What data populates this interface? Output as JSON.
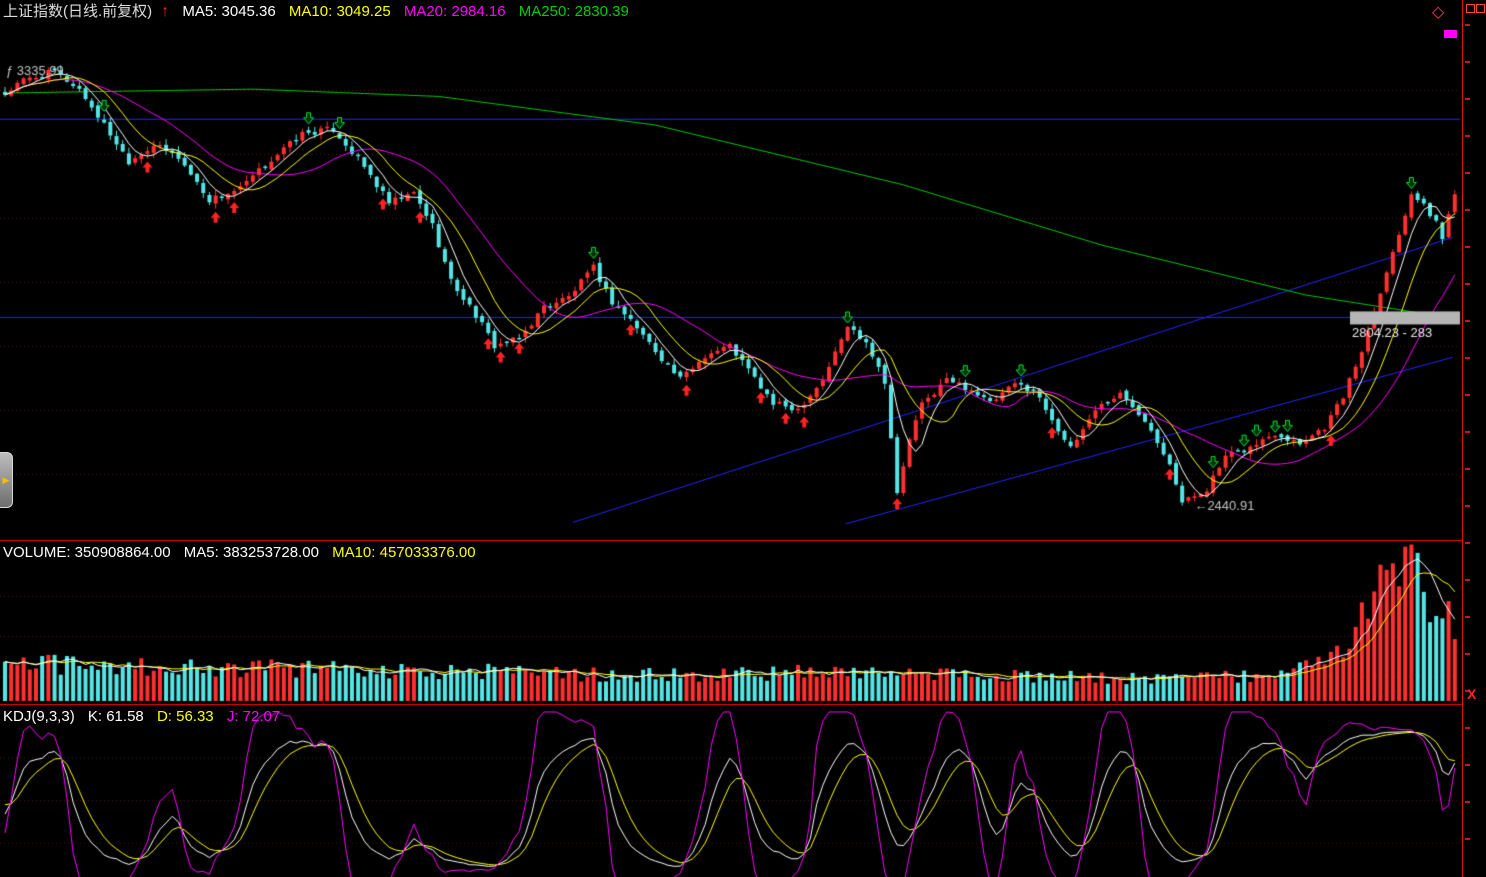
{
  "app": {
    "name": "stock-charting-terminal"
  },
  "icons": {
    "up_arrow": "↑",
    "diamond": "◇",
    "close": "X",
    "tab_arrow": "▶"
  },
  "colors": {
    "background": "#000000",
    "up": "#ff3030",
    "down": "#54e6e6",
    "ma5": "#ffffff",
    "ma10": "#ffff00",
    "ma20": "#ff00ff",
    "ma250": "#00cc00",
    "kdj_k": "#ffffff",
    "kdj_d": "#ffff00",
    "kdj_j": "#ff00ff",
    "grid": "#5a1010",
    "bluelines": "#2424ff",
    "panel_border": "#c80000",
    "buy_marker": "#ff2222",
    "sell_marker": "#00dd33",
    "label_gray": "#c0c0c0",
    "marker_box": "#b5b5b5"
  },
  "main_panel": {
    "title": "上证指数(日线.前复权)",
    "ma_labels": [
      {
        "label": "MA5: 3045.36",
        "color": "#ffffff"
      },
      {
        "label": "MA10: 3049.25",
        "color": "#ffff00"
      },
      {
        "label": "MA20: 2984.16",
        "color": "#ff00ff"
      },
      {
        "label": "MA250: 2830.39",
        "color": "#00cc00"
      }
    ],
    "annotations": {
      "peak": {
        "text": "ƒ 3335.99",
        "index": 0,
        "price": 3336
      },
      "trough": {
        "text": "←2440.91",
        "index": 191,
        "price": 2441
      },
      "right_box": {
        "text": "2804.23 - 283",
        "price": 2830
      }
    }
  },
  "volume_panel": {
    "labels": [
      {
        "label": "VOLUME: 350908864.00",
        "color": "#ffffff"
      },
      {
        "label": "MA5: 383253728.00",
        "color": "#ffffff"
      },
      {
        "label": "MA10: 457033376.00",
        "color": "#ffff00"
      }
    ]
  },
  "kdj_panel": {
    "labels": [
      {
        "label": "KDJ(9,3,3)",
        "color": "#ffffff"
      },
      {
        "label": "K: 61.58",
        "color": "#ffffff"
      },
      {
        "label": "D: 56.33",
        "color": "#ffff00"
      },
      {
        "label": "J: 72.07",
        "color": "#ff00ff"
      }
    ]
  },
  "chart_data": [
    {
      "type": "candlestick",
      "name": "price",
      "title": "上证指数(日线.前复权)",
      "bars": 235,
      "y_range": [
        2380,
        3430
      ],
      "ma_values": {
        "ma5": 3045.36,
        "ma10": 3049.25,
        "ma20": 2984.16,
        "ma250": 2830.39
      },
      "labeled_points": {
        "peak": 3335.99,
        "trough": 2440.91,
        "right_marker": "2804.23 - 283"
      },
      "close_anchors": [
        [
          0,
          3290
        ],
        [
          3,
          3318
        ],
        [
          8,
          3336
        ],
        [
          12,
          3300
        ],
        [
          15,
          3245
        ],
        [
          20,
          3152
        ],
        [
          24,
          3185
        ],
        [
          28,
          3160
        ],
        [
          33,
          3072
        ],
        [
          38,
          3095
        ],
        [
          43,
          3155
        ],
        [
          48,
          3208
        ],
        [
          53,
          3218
        ],
        [
          58,
          3140
        ],
        [
          62,
          3065
        ],
        [
          66,
          3085
        ],
        [
          69,
          3020
        ],
        [
          72,
          2905
        ],
        [
          76,
          2835
        ],
        [
          79,
          2772
        ],
        [
          83,
          2785
        ],
        [
          87,
          2852
        ],
        [
          91,
          2872
        ],
        [
          95,
          2932
        ],
        [
          98,
          2862
        ],
        [
          101,
          2825
        ],
        [
          105,
          2762
        ],
        [
          109,
          2702
        ],
        [
          113,
          2752
        ],
        [
          117,
          2772
        ],
        [
          120,
          2722
        ],
        [
          124,
          2652
        ],
        [
          128,
          2642
        ],
        [
          132,
          2702
        ],
        [
          136,
          2812
        ],
        [
          139,
          2782
        ],
        [
          142,
          2700
        ],
        [
          144,
          2465
        ],
        [
          146,
          2580
        ],
        [
          148,
          2650
        ],
        [
          152,
          2702
        ],
        [
          156,
          2682
        ],
        [
          159,
          2652
        ],
        [
          163,
          2692
        ],
        [
          166,
          2682
        ],
        [
          169,
          2622
        ],
        [
          172,
          2558
        ],
        [
          176,
          2642
        ],
        [
          180,
          2672
        ],
        [
          184,
          2622
        ],
        [
          188,
          2532
        ],
        [
          190,
          2448
        ],
        [
          194,
          2478
        ],
        [
          197,
          2542
        ],
        [
          201,
          2562
        ],
        [
          205,
          2592
        ],
        [
          209,
          2572
        ],
        [
          213,
          2605
        ],
        [
          216,
          2668
        ],
        [
          219,
          2762
        ],
        [
          222,
          2886
        ],
        [
          225,
          3002
        ],
        [
          227,
          3088
        ],
        [
          229,
          3058
        ],
        [
          231,
          3028
        ],
        [
          232,
          2992
        ],
        [
          234,
          3090
        ]
      ],
      "ma250_anchors": [
        [
          0,
          3292
        ],
        [
          40,
          3300
        ],
        [
          70,
          3285
        ],
        [
          105,
          3226
        ],
        [
          145,
          3103
        ],
        [
          177,
          2979
        ],
        [
          210,
          2876
        ],
        [
          234,
          2828
        ]
      ],
      "hlines": [
        3238,
        2830
      ],
      "trendlines": [
        [
          92,
          2408,
          234,
          2995
        ],
        [
          136,
          2405,
          234,
          2748
        ]
      ],
      "buy_markers": [
        23,
        34,
        37,
        61,
        67,
        78,
        80,
        83,
        101,
        110,
        122,
        126,
        129,
        144,
        169,
        188,
        214
      ],
      "sell_markers": [
        16,
        49,
        54,
        95,
        136,
        155,
        164,
        195,
        200,
        202,
        205,
        207,
        227
      ]
    },
    {
      "type": "bar",
      "name": "volume",
      "current": 350908864.0,
      "ma5": 383253728.0,
      "ma10": 457033376.0,
      "max": 1700,
      "anchors": [
        [
          0,
          430
        ],
        [
          15,
          400
        ],
        [
          30,
          390
        ],
        [
          45,
          370
        ],
        [
          60,
          355
        ],
        [
          75,
          340
        ],
        [
          90,
          310
        ],
        [
          105,
          300
        ],
        [
          120,
          320
        ],
        [
          135,
          330
        ],
        [
          145,
          290
        ],
        [
          160,
          300
        ],
        [
          175,
          270
        ],
        [
          190,
          260
        ],
        [
          200,
          290
        ],
        [
          208,
          330
        ],
        [
          213,
          420
        ],
        [
          216,
          650
        ],
        [
          219,
          950
        ],
        [
          222,
          1350
        ],
        [
          225,
          1600
        ],
        [
          227,
          1500
        ],
        [
          229,
          1250
        ],
        [
          231,
          1050
        ],
        [
          233,
          900
        ],
        [
          234,
          820
        ]
      ]
    },
    {
      "type": "line",
      "name": "kdj",
      "params": [
        9,
        3,
        3
      ],
      "k": 61.58,
      "d": 56.33,
      "j": 72.07,
      "y_range": [
        0,
        100
      ],
      "gridlines": [
        20,
        50,
        80
      ]
    }
  ]
}
